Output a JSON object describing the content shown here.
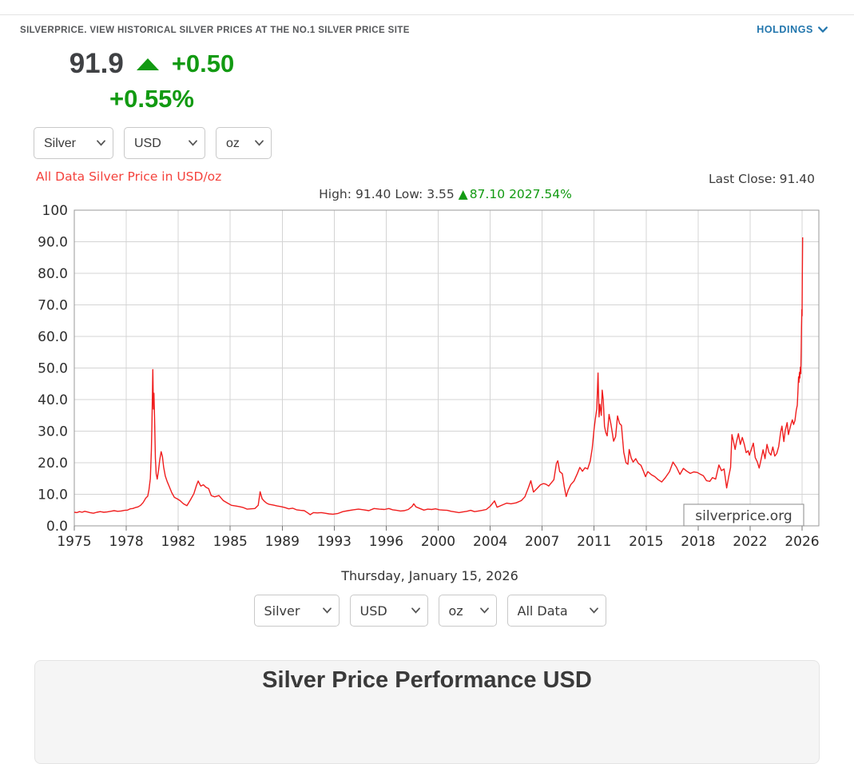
{
  "header": {
    "tagline": "SILVERPRICE. VIEW HISTORICAL SILVER PRICES AT THE NO.1 SILVER PRICE SITE",
    "holdings_label": "HOLDINGS"
  },
  "quote": {
    "price": "91.9",
    "change": "+0.50",
    "change_pct": "+0.55%"
  },
  "controls_top": {
    "metal": "Silver",
    "currency": "USD",
    "unit": "oz"
  },
  "controls_bottom": {
    "metal": "Silver",
    "currency": "USD",
    "unit": "oz",
    "range": "All Data"
  },
  "chart": {
    "title": "All Data Silver Price in USD/oz",
    "high_label": "High:",
    "high": "91.40",
    "low_label": "Low:",
    "low": "3.55",
    "change_triangle": "▲",
    "change_abs": "87.10",
    "change_pct": "2027.54%",
    "last_close_label": "Last Close:",
    "last_close": "91.40",
    "watermark": "silverprice.org",
    "date_caption": "Thursday, January 15, 2026"
  },
  "panel": {
    "title": "Silver Price Performance USD"
  },
  "colors": {
    "up_green": "#129a12",
    "holdings_blue": "#2276ad",
    "chart_title_red": "#f4423c",
    "chart_line_red": "#f01d1d",
    "grid_gray": "#d4d4d4",
    "plot_border_gray": "#999999"
  },
  "chart_data": {
    "type": "line",
    "title": "All Data Silver Price in USD/oz",
    "xlabel": "",
    "ylabel": "",
    "ylim": [
      0,
      100
    ],
    "grid": true,
    "x_tick_years": [
      1975,
      1978,
      1982,
      1985,
      1989,
      1993,
      1996,
      2000,
      2004,
      2007,
      2011,
      2015,
      2018,
      2022,
      2026
    ],
    "x_tick_labels": [
      "1975",
      "1978",
      "1982",
      "1985",
      "1989",
      "1993",
      "1996",
      "2000",
      "2004",
      "2007",
      "2011",
      "2015",
      "2018",
      "2022",
      "2026"
    ],
    "y_tick_values": [
      0,
      10,
      20,
      30,
      40,
      50,
      60,
      70,
      80,
      90,
      100
    ],
    "y_tick_labels": [
      "0.0",
      "10.0",
      "20.0",
      "30.0",
      "40.0",
      "50.0",
      "60.0",
      "70.0",
      "80.0",
      "90.0",
      "100"
    ],
    "series": [
      {
        "name": "Silver price USD/oz",
        "points": [
          [
            1975.0,
            4.3
          ],
          [
            1975.15,
            4.2
          ],
          [
            1975.3,
            4.5
          ],
          [
            1975.45,
            4.3
          ],
          [
            1975.6,
            4.6
          ],
          [
            1975.75,
            4.4
          ],
          [
            1975.9,
            4.2
          ],
          [
            1976.1,
            4.0
          ],
          [
            1976.3,
            4.3
          ],
          [
            1976.5,
            4.5
          ],
          [
            1976.7,
            4.3
          ],
          [
            1976.9,
            4.4
          ],
          [
            1977.1,
            4.6
          ],
          [
            1977.3,
            4.8
          ],
          [
            1977.5,
            4.6
          ],
          [
            1977.7,
            4.7
          ],
          [
            1977.9,
            4.9
          ],
          [
            1978.1,
            5.0
          ],
          [
            1978.3,
            5.4
          ],
          [
            1978.5,
            5.5
          ],
          [
            1978.7,
            5.8
          ],
          [
            1978.9,
            6.0
          ],
          [
            1979.1,
            6.5
          ],
          [
            1979.3,
            7.4
          ],
          [
            1979.5,
            8.8
          ],
          [
            1979.65,
            9.4
          ],
          [
            1979.75,
            11.5
          ],
          [
            1979.85,
            15.0
          ],
          [
            1979.93,
            24.0
          ],
          [
            1979.98,
            34.0
          ],
          [
            1980.04,
            49.5
          ],
          [
            1980.09,
            37.0
          ],
          [
            1980.13,
            42.0
          ],
          [
            1980.18,
            34.0
          ],
          [
            1980.24,
            21.5
          ],
          [
            1980.3,
            16.5
          ],
          [
            1980.38,
            14.8
          ],
          [
            1980.48,
            17.5
          ],
          [
            1980.58,
            21.0
          ],
          [
            1980.68,
            23.5
          ],
          [
            1980.78,
            22.0
          ],
          [
            1980.88,
            18.5
          ],
          [
            1981.0,
            15.8
          ],
          [
            1981.15,
            14.0
          ],
          [
            1981.3,
            12.5
          ],
          [
            1981.5,
            10.5
          ],
          [
            1981.7,
            9.0
          ],
          [
            1981.9,
            8.6
          ],
          [
            1982.1,
            8.0
          ],
          [
            1982.3,
            7.0
          ],
          [
            1982.5,
            6.4
          ],
          [
            1982.7,
            8.2
          ],
          [
            1982.9,
            10.2
          ],
          [
            1983.05,
            12.8
          ],
          [
            1983.15,
            14.2
          ],
          [
            1983.3,
            12.6
          ],
          [
            1983.45,
            13.0
          ],
          [
            1983.6,
            12.2
          ],
          [
            1983.75,
            11.8
          ],
          [
            1983.9,
            9.6
          ],
          [
            1984.1,
            9.2
          ],
          [
            1984.35,
            9.6
          ],
          [
            1984.6,
            8.0
          ],
          [
            1984.85,
            7.2
          ],
          [
            1985.1,
            6.5
          ],
          [
            1985.4,
            6.3
          ],
          [
            1985.7,
            6.1
          ],
          [
            1986.0,
            5.8
          ],
          [
            1986.3,
            5.3
          ],
          [
            1986.6,
            5.4
          ],
          [
            1986.9,
            5.5
          ],
          [
            1987.15,
            6.5
          ],
          [
            1987.3,
            10.8
          ],
          [
            1987.45,
            8.6
          ],
          [
            1987.6,
            7.9
          ],
          [
            1987.8,
            7.2
          ],
          [
            1988.0,
            6.8
          ],
          [
            1988.3,
            6.6
          ],
          [
            1988.6,
            6.3
          ],
          [
            1988.9,
            6.1
          ],
          [
            1989.2,
            5.8
          ],
          [
            1989.5,
            5.4
          ],
          [
            1989.8,
            5.6
          ],
          [
            1990.1,
            5.1
          ],
          [
            1990.4,
            4.9
          ],
          [
            1990.7,
            4.8
          ],
          [
            1991.0,
            4.0
          ],
          [
            1991.15,
            3.55
          ],
          [
            1991.4,
            4.2
          ],
          [
            1991.7,
            4.1
          ],
          [
            1992.0,
            4.2
          ],
          [
            1992.3,
            4.0
          ],
          [
            1992.6,
            3.8
          ],
          [
            1992.9,
            3.7
          ],
          [
            1993.2,
            3.9
          ],
          [
            1993.5,
            4.5
          ],
          [
            1993.8,
            4.8
          ],
          [
            1994.1,
            5.1
          ],
          [
            1994.4,
            5.3
          ],
          [
            1994.7,
            5.1
          ],
          [
            1995.0,
            4.8
          ],
          [
            1995.3,
            5.5
          ],
          [
            1995.6,
            5.3
          ],
          [
            1995.9,
            5.2
          ],
          [
            1996.2,
            5.5
          ],
          [
            1996.5,
            5.1
          ],
          [
            1996.8,
            4.9
          ],
          [
            1997.1,
            4.7
          ],
          [
            1997.4,
            4.8
          ],
          [
            1997.7,
            5.2
          ],
          [
            1998.0,
            6.2
          ],
          [
            1998.12,
            7.0
          ],
          [
            1998.3,
            6.0
          ],
          [
            1998.6,
            5.5
          ],
          [
            1998.9,
            5.0
          ],
          [
            1999.2,
            5.3
          ],
          [
            1999.5,
            5.2
          ],
          [
            1999.8,
            5.4
          ],
          [
            2000.1,
            5.1
          ],
          [
            2000.4,
            5.0
          ],
          [
            2000.7,
            4.9
          ],
          [
            2001.0,
            4.6
          ],
          [
            2001.3,
            4.4
          ],
          [
            2001.6,
            4.2
          ],
          [
            2001.9,
            4.4
          ],
          [
            2002.2,
            4.6
          ],
          [
            2002.5,
            4.9
          ],
          [
            2002.8,
            4.5
          ],
          [
            2003.1,
            4.7
          ],
          [
            2003.4,
            4.9
          ],
          [
            2003.7,
            5.2
          ],
          [
            2004.0,
            6.2
          ],
          [
            2004.25,
            7.9
          ],
          [
            2004.4,
            5.9
          ],
          [
            2004.7,
            6.6
          ],
          [
            2004.95,
            7.2
          ],
          [
            2005.2,
            7.0
          ],
          [
            2005.5,
            7.3
          ],
          [
            2005.8,
            8.0
          ],
          [
            2006.0,
            9.2
          ],
          [
            2006.2,
            12.0
          ],
          [
            2006.35,
            14.3
          ],
          [
            2006.5,
            10.7
          ],
          [
            2006.7,
            11.8
          ],
          [
            2006.9,
            13.0
          ],
          [
            2007.1,
            13.4
          ],
          [
            2007.3,
            13.2
          ],
          [
            2007.5,
            12.6
          ],
          [
            2007.7,
            13.6
          ],
          [
            2007.9,
            14.6
          ],
          [
            2008.1,
            19.8
          ],
          [
            2008.2,
            20.6
          ],
          [
            2008.35,
            17.2
          ],
          [
            2008.55,
            16.5
          ],
          [
            2008.7,
            12.5
          ],
          [
            2008.85,
            9.3
          ],
          [
            2009.0,
            11.3
          ],
          [
            2009.2,
            13.0
          ],
          [
            2009.45,
            14.2
          ],
          [
            2009.7,
            16.5
          ],
          [
            2009.9,
            18.5
          ],
          [
            2010.1,
            17.3
          ],
          [
            2010.3,
            18.4
          ],
          [
            2010.5,
            18.0
          ],
          [
            2010.7,
            20.5
          ],
          [
            2010.85,
            24.5
          ],
          [
            2011.0,
            30.8
          ],
          [
            2011.1,
            34.0
          ],
          [
            2011.2,
            37.0
          ],
          [
            2011.3,
            48.4
          ],
          [
            2011.38,
            34.5
          ],
          [
            2011.45,
            38.5
          ],
          [
            2011.55,
            35.0
          ],
          [
            2011.62,
            43.0
          ],
          [
            2011.7,
            40.0
          ],
          [
            2011.8,
            31.5
          ],
          [
            2011.9,
            29.5
          ],
          [
            2012.0,
            28.5
          ],
          [
            2012.15,
            35.3
          ],
          [
            2012.3,
            32.0
          ],
          [
            2012.5,
            26.8
          ],
          [
            2012.65,
            28.3
          ],
          [
            2012.8,
            34.8
          ],
          [
            2012.95,
            32.5
          ],
          [
            2013.1,
            31.8
          ],
          [
            2013.28,
            23.3
          ],
          [
            2013.45,
            20.0
          ],
          [
            2013.6,
            19.5
          ],
          [
            2013.7,
            24.2
          ],
          [
            2013.85,
            21.5
          ],
          [
            2014.0,
            20.2
          ],
          [
            2014.2,
            21.3
          ],
          [
            2014.4,
            19.8
          ],
          [
            2014.6,
            19.2
          ],
          [
            2014.8,
            17.3
          ],
          [
            2014.95,
            15.6
          ],
          [
            2015.1,
            17.2
          ],
          [
            2015.3,
            16.2
          ],
          [
            2015.5,
            15.6
          ],
          [
            2015.7,
            14.6
          ],
          [
            2015.9,
            13.9
          ],
          [
            2016.1,
            15.2
          ],
          [
            2016.35,
            17.2
          ],
          [
            2016.55,
            20.2
          ],
          [
            2016.75,
            18.6
          ],
          [
            2016.95,
            16.3
          ],
          [
            2017.15,
            18.2
          ],
          [
            2017.35,
            17.3
          ],
          [
            2017.55,
            16.6
          ],
          [
            2017.75,
            17.1
          ],
          [
            2017.95,
            16.9
          ],
          [
            2018.15,
            16.4
          ],
          [
            2018.4,
            15.9
          ],
          [
            2018.65,
            14.3
          ],
          [
            2018.9,
            14.1
          ],
          [
            2019.1,
            15.3
          ],
          [
            2019.35,
            14.8
          ],
          [
            2019.6,
            19.3
          ],
          [
            2019.8,
            17.5
          ],
          [
            2020.0,
            18.0
          ],
          [
            2020.2,
            12.0
          ],
          [
            2020.35,
            15.5
          ],
          [
            2020.5,
            18.5
          ],
          [
            2020.6,
            28.9
          ],
          [
            2020.72,
            26.8
          ],
          [
            2020.85,
            24.2
          ],
          [
            2020.95,
            26.5
          ],
          [
            2021.1,
            29.2
          ],
          [
            2021.25,
            25.8
          ],
          [
            2021.4,
            28.0
          ],
          [
            2021.55,
            25.9
          ],
          [
            2021.7,
            23.2
          ],
          [
            2021.85,
            23.8
          ],
          [
            2021.95,
            22.4
          ],
          [
            2022.1,
            24.3
          ],
          [
            2022.25,
            26.2
          ],
          [
            2022.4,
            21.6
          ],
          [
            2022.55,
            20.3
          ],
          [
            2022.7,
            18.3
          ],
          [
            2022.85,
            21.2
          ],
          [
            2023.0,
            24.1
          ],
          [
            2023.15,
            21.3
          ],
          [
            2023.3,
            25.8
          ],
          [
            2023.45,
            23.3
          ],
          [
            2023.6,
            22.4
          ],
          [
            2023.75,
            25.0
          ],
          [
            2023.9,
            22.1
          ],
          [
            2024.05,
            22.9
          ],
          [
            2024.2,
            25.1
          ],
          [
            2024.35,
            29.7
          ],
          [
            2024.45,
            31.6
          ],
          [
            2024.6,
            26.7
          ],
          [
            2024.7,
            30.2
          ],
          [
            2024.85,
            32.7
          ],
          [
            2024.95,
            28.9
          ],
          [
            2025.05,
            30.6
          ],
          [
            2025.15,
            32.3
          ],
          [
            2025.25,
            33.6
          ],
          [
            2025.35,
            32.1
          ],
          [
            2025.45,
            33.4
          ],
          [
            2025.55,
            36.6
          ],
          [
            2025.63,
            38.2
          ],
          [
            2025.68,
            42.5
          ],
          [
            2025.73,
            47.2
          ],
          [
            2025.76,
            45.5
          ],
          [
            2025.8,
            48.6
          ],
          [
            2025.83,
            46.8
          ],
          [
            2025.87,
            50.3
          ],
          [
            2025.9,
            48.2
          ],
          [
            2025.93,
            55.5
          ],
          [
            2025.96,
            63.0
          ],
          [
            2025.98,
            68.5
          ],
          [
            2026.0,
            66.5
          ],
          [
            2026.02,
            79.0
          ],
          [
            2026.04,
            91.4
          ]
        ]
      }
    ]
  }
}
